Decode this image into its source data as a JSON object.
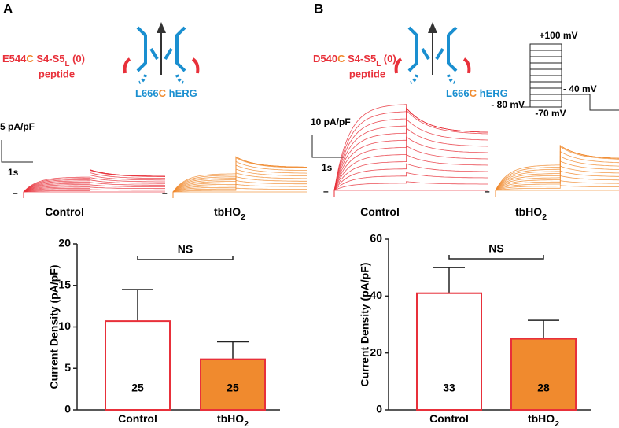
{
  "panels": [
    {
      "label": "A",
      "peptide": [
        "E544",
        "C",
        " S4-S5",
        "L",
        " (0)"
      ],
      "peptide_word": "peptide",
      "channel": [
        "L666",
        "C",
        " hERG"
      ],
      "scale_current": "5 pA/pF",
      "scale_time": "1s",
      "trace_labels": [
        [
          "Control"
        ],
        [
          "tbHO",
          "2"
        ]
      ]
    },
    {
      "label": "B",
      "peptide": [
        "D540",
        "C",
        " S4-S5",
        "L",
        " (0)"
      ],
      "peptide_word": "peptide",
      "channel": [
        "L666",
        "C",
        " hERG"
      ],
      "scale_current": "10 pA/pF",
      "scale_time": "1s",
      "trace_labels": [
        [
          "Control"
        ],
        [
          "tbHO",
          "2"
        ]
      ],
      "protocol": [
        "+100 mV",
        "- 40 mV",
        "- 80 mV",
        "-70 mV"
      ]
    }
  ],
  "chart_data": [
    {
      "type": "bar",
      "ylabel": "Current Density (pA/pF)",
      "categories": [
        [
          "Control"
        ],
        [
          "tbHO",
          "2"
        ]
      ],
      "values": [
        10.7,
        6.1
      ],
      "errors": [
        3.8,
        2.1
      ],
      "value_labels": [
        "25",
        "25"
      ],
      "colors": [
        "#ffffff",
        "#f08a2e"
      ],
      "edge_color": "#e8303a",
      "ylim": [
        0,
        20
      ],
      "yticks": [
        0,
        5,
        10,
        15,
        20
      ],
      "significance": "NS"
    },
    {
      "type": "bar",
      "ylabel": "Current Density (pA/pF)",
      "categories": [
        [
          "Control"
        ],
        [
          "tbHO",
          "2"
        ]
      ],
      "values": [
        41,
        25
      ],
      "errors": [
        9,
        6.5
      ],
      "value_labels": [
        "33",
        "28"
      ],
      "colors": [
        "#ffffff",
        "#f08a2e"
      ],
      "edge_color": "#e8303a",
      "ylim": [
        0,
        60
      ],
      "yticks": [
        0,
        20,
        40,
        60
      ],
      "significance": "NS"
    }
  ]
}
